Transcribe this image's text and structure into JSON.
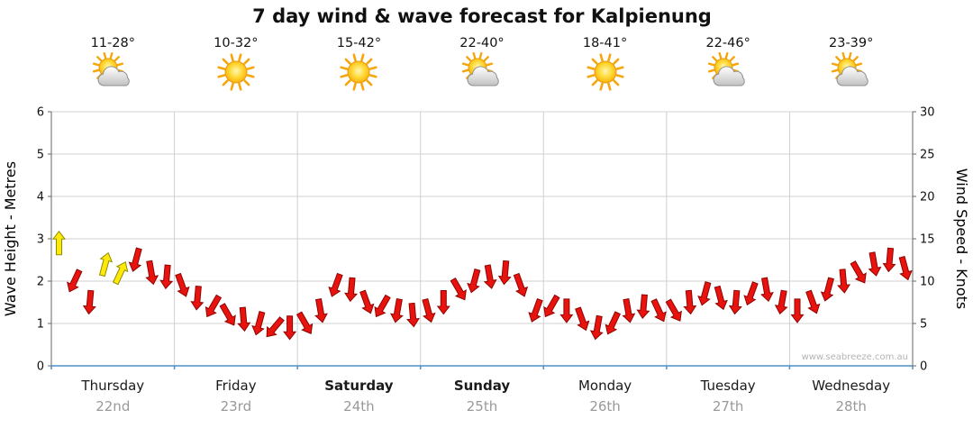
{
  "title": "7 day wind & wave forecast for Kalpienung",
  "watermark": "www.seabreeze.com.au",
  "chart_data": {
    "type": "wind-forecast",
    "title": "7 day wind & wave forecast for Kalpienung",
    "ylabel_left": "Wave Height - Metres",
    "ylabel_right": "Wind Speed - Knots",
    "left_axis": {
      "min": 0,
      "max": 6,
      "ticks": [
        0,
        1,
        2,
        3,
        4,
        5,
        6
      ]
    },
    "right_axis": {
      "min": 0,
      "max": 30,
      "ticks": [
        0,
        5,
        10,
        15,
        20,
        25,
        30
      ]
    },
    "grid": true,
    "colors": {
      "red": {
        "fill": "#e8130f",
        "stroke": "#8f0400"
      },
      "yellow": {
        "fill": "#ffe90a",
        "stroke": "#8d8d00"
      },
      "bottom_axis": "#4e8fc7",
      "gridline": "#d0d0d0",
      "axis": "#666666"
    },
    "days": [
      {
        "name": "Thursday",
        "date": "22nd",
        "temp": "11-28°",
        "icon": "partly-cloudy",
        "weekend": false,
        "wind": [
          {
            "kn": 14.5,
            "dir": 0,
            "color": "yellow"
          },
          {
            "kn": 10,
            "dir": 205,
            "color": "red"
          },
          {
            "kn": 7.5,
            "dir": 185,
            "color": "red"
          },
          {
            "kn": 12,
            "dir": 15,
            "color": "yellow"
          },
          {
            "kn": 11,
            "dir": 25,
            "color": "yellow"
          },
          {
            "kn": 12.5,
            "dir": 195,
            "color": "red"
          },
          {
            "kn": 11,
            "dir": 170,
            "color": "red"
          },
          {
            "kn": 10.5,
            "dir": 185,
            "color": "red"
          }
        ]
      },
      {
        "name": "Friday",
        "date": "23rd",
        "temp": "10-32°",
        "icon": "sunny",
        "weekend": false,
        "wind": [
          {
            "kn": 9.5,
            "dir": 160,
            "color": "red"
          },
          {
            "kn": 8,
            "dir": 185,
            "color": "red"
          },
          {
            "kn": 7,
            "dir": 210,
            "color": "red"
          },
          {
            "kn": 6,
            "dir": 150,
            "color": "red"
          },
          {
            "kn": 5.5,
            "dir": 175,
            "color": "red"
          },
          {
            "kn": 5,
            "dir": 195,
            "color": "red"
          },
          {
            "kn": 4.5,
            "dir": 220,
            "color": "red"
          },
          {
            "kn": 4.5,
            "dir": 180,
            "color": "red"
          }
        ]
      },
      {
        "name": "Saturday",
        "date": "24th",
        "temp": "15-42°",
        "icon": "sunny",
        "weekend": true,
        "wind": [
          {
            "kn": 5,
            "dir": 150,
            "color": "red"
          },
          {
            "kn": 6.5,
            "dir": 170,
            "color": "red"
          },
          {
            "kn": 9.5,
            "dir": 200,
            "color": "red"
          },
          {
            "kn": 9,
            "dir": 185,
            "color": "red"
          },
          {
            "kn": 7.5,
            "dir": 160,
            "color": "red"
          },
          {
            "kn": 7,
            "dir": 210,
            "color": "red"
          },
          {
            "kn": 6.5,
            "dir": 190,
            "color": "red"
          },
          {
            "kn": 6,
            "dir": 175,
            "color": "red"
          }
        ]
      },
      {
        "name": "Sunday",
        "date": "25th",
        "temp": "22-40°",
        "icon": "partly-cloudy",
        "weekend": true,
        "wind": [
          {
            "kn": 6.5,
            "dir": 165,
            "color": "red"
          },
          {
            "kn": 7.5,
            "dir": 180,
            "color": "red"
          },
          {
            "kn": 9,
            "dir": 150,
            "color": "red"
          },
          {
            "kn": 10,
            "dir": 195,
            "color": "red"
          },
          {
            "kn": 10.5,
            "dir": 170,
            "color": "red"
          },
          {
            "kn": 11,
            "dir": 185,
            "color": "red"
          },
          {
            "kn": 9.5,
            "dir": 160,
            "color": "red"
          },
          {
            "kn": 6.5,
            "dir": 200,
            "color": "red"
          }
        ]
      },
      {
        "name": "Monday",
        "date": "26th",
        "temp": "18-41°",
        "icon": "sunny",
        "weekend": false,
        "wind": [
          {
            "kn": 7,
            "dir": 210,
            "color": "red"
          },
          {
            "kn": 6.5,
            "dir": 180,
            "color": "red"
          },
          {
            "kn": 5.5,
            "dir": 160,
            "color": "red"
          },
          {
            "kn": 4.5,
            "dir": 190,
            "color": "red"
          },
          {
            "kn": 5,
            "dir": 205,
            "color": "red"
          },
          {
            "kn": 6.5,
            "dir": 170,
            "color": "red"
          },
          {
            "kn": 7,
            "dir": 185,
            "color": "red"
          },
          {
            "kn": 6.5,
            "dir": 155,
            "color": "red"
          }
        ]
      },
      {
        "name": "Tuesday",
        "date": "27th",
        "temp": "22-46°",
        "icon": "partly-cloudy",
        "weekend": false,
        "wind": [
          {
            "kn": 6.5,
            "dir": 150,
            "color": "red"
          },
          {
            "kn": 7.5,
            "dir": 175,
            "color": "red"
          },
          {
            "kn": 8.5,
            "dir": 195,
            "color": "red"
          },
          {
            "kn": 8,
            "dir": 165,
            "color": "red"
          },
          {
            "kn": 7.5,
            "dir": 185,
            "color": "red"
          },
          {
            "kn": 8.5,
            "dir": 200,
            "color": "red"
          },
          {
            "kn": 9,
            "dir": 170,
            "color": "red"
          },
          {
            "kn": 7.5,
            "dir": 190,
            "color": "red"
          }
        ]
      },
      {
        "name": "Wednesday",
        "date": "28th",
        "temp": "23-39°",
        "icon": "partly-cloudy",
        "weekend": false,
        "wind": [
          {
            "kn": 6.5,
            "dir": 180,
            "color": "red"
          },
          {
            "kn": 7.5,
            "dir": 160,
            "color": "red"
          },
          {
            "kn": 9,
            "dir": 195,
            "color": "red"
          },
          {
            "kn": 10,
            "dir": 175,
            "color": "red"
          },
          {
            "kn": 11,
            "dir": 150,
            "color": "red"
          },
          {
            "kn": 12,
            "dir": 170,
            "color": "red"
          },
          {
            "kn": 12.5,
            "dir": 185,
            "color": "red"
          },
          {
            "kn": 11.5,
            "dir": 165,
            "color": "red"
          }
        ]
      }
    ]
  }
}
